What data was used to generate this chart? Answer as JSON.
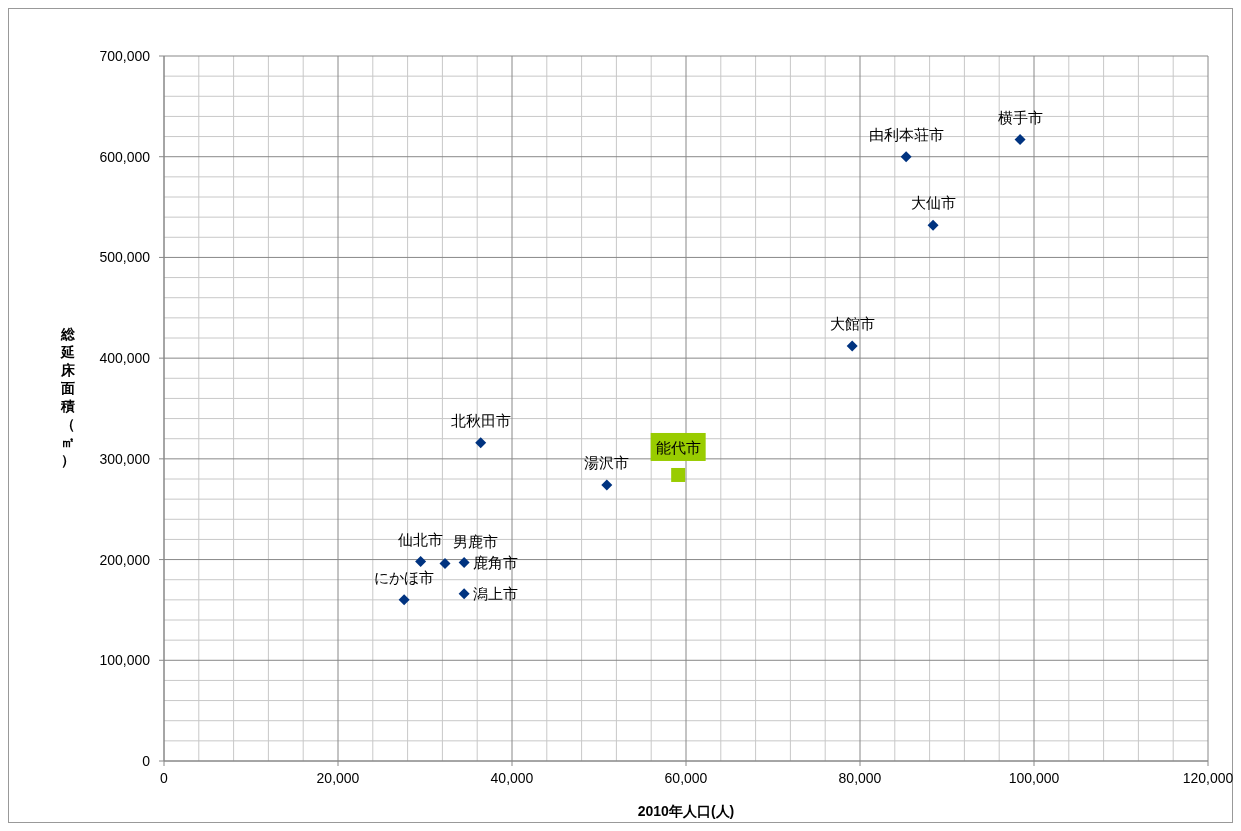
{
  "chart_data": {
    "type": "scatter",
    "xlabel": "2010年人口(人)",
    "ylabel": "総延床面積（㎡）",
    "xlim": [
      0,
      120000
    ],
    "xticks": [
      {
        "value": 0,
        "label": "0"
      },
      {
        "value": 20000,
        "label": "20,000"
      },
      {
        "value": 40000,
        "label": "40,000"
      },
      {
        "value": 60000,
        "label": "60,000"
      },
      {
        "value": 80000,
        "label": "80,000"
      },
      {
        "value": 100000,
        "label": "100,000"
      },
      {
        "value": 120000,
        "label": "120,000"
      }
    ],
    "ylim": [
      0,
      700000
    ],
    "yticks": [
      {
        "value": 0,
        "label": "0"
      },
      {
        "value": 100000,
        "label": "100,000"
      },
      {
        "value": 200000,
        "label": "200,000"
      },
      {
        "value": 300000,
        "label": "300,000"
      },
      {
        "value": 400000,
        "label": "400,000"
      },
      {
        "value": 500000,
        "label": "500,000"
      },
      {
        "value": 600000,
        "label": "600,000"
      },
      {
        "value": 700000,
        "label": "700,000"
      }
    ],
    "grid": true,
    "series": [
      {
        "color": "#003380",
        "marker": "diamond",
        "x": [
          27600,
          29500,
          32300,
          34500,
          34500,
          36400,
          50900,
          79100,
          85300,
          88400,
          98400
        ],
        "values": [
          160000,
          198000,
          196000,
          197000,
          166000,
          316000,
          274000,
          412000,
          600000,
          532000,
          617000
        ]
      },
      {
        "color": "#99cc00",
        "marker": "square",
        "x": [
          59100
        ],
        "values": [
          284000
        ]
      }
    ],
    "annotations": [
      {
        "text": "にかほ市",
        "x": 27600,
        "y": 160000
      },
      {
        "text": "仙北市",
        "x": 29500,
        "y": 198000
      },
      {
        "text": "男鹿市",
        "x": 32300,
        "y": 196000
      },
      {
        "text": "鹿角市",
        "x": 34500,
        "y": 197000
      },
      {
        "text": "潟上市",
        "x": 34500,
        "y": 166000
      },
      {
        "text": "北秋田市",
        "x": 36400,
        "y": 316000
      },
      {
        "text": "湯沢市",
        "x": 50900,
        "y": 274000
      },
      {
        "text": "能代市",
        "x": 59100,
        "y": 284000
      },
      {
        "text": "大館市",
        "x": 79100,
        "y": 412000
      },
      {
        "text": "由利本荘市",
        "x": 85300,
        "y": 600000
      },
      {
        "text": "大仙市",
        "x": 88400,
        "y": 532000
      },
      {
        "text": "横手市",
        "x": 98400,
        "y": 617000
      }
    ]
  }
}
